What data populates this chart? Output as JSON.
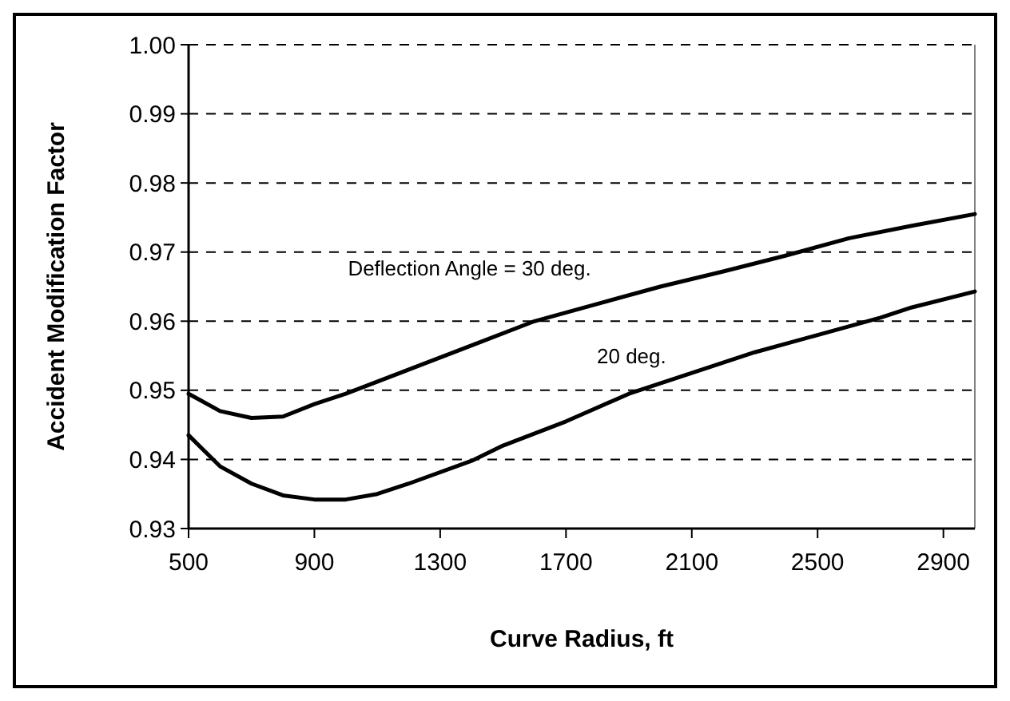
{
  "chart_data": {
    "type": "line",
    "xlabel": "Curve Radius, ft",
    "ylabel": "Accident Modification Factor",
    "xlim": [
      500,
      3000
    ],
    "xticks": [
      500,
      900,
      1300,
      1700,
      2100,
      2500,
      2900
    ],
    "ylim": [
      0.93,
      1.0
    ],
    "yticks": [
      {
        "value": 0.93,
        "label": "0.93"
      },
      {
        "value": 0.94,
        "label": "0.94"
      },
      {
        "value": 0.95,
        "label": "0.95"
      },
      {
        "value": 0.96,
        "label": "0.96"
      },
      {
        "value": 0.97,
        "label": "0.97"
      },
      {
        "value": 0.98,
        "label": "0.98"
      },
      {
        "value": 0.99,
        "label": "0.99"
      },
      {
        "value": 1.0,
        "label": "1.00"
      }
    ],
    "grid": "y",
    "legend": false,
    "marker": "none",
    "line_style": "solid",
    "series": [
      {
        "name": "Deflection Angle = 30 deg.",
        "color": "#000000",
        "x": [
          500,
          600,
          700,
          800,
          900,
          1000,
          1200,
          1400,
          1600,
          1800,
          2000,
          2200,
          2400,
          2600,
          2800,
          3000
        ],
        "values": [
          0.9495,
          0.947,
          0.946,
          0.9462,
          0.948,
          0.9495,
          0.953,
          0.9565,
          0.96,
          0.9625,
          0.965,
          0.9672,
          0.9695,
          0.972,
          0.9738,
          0.9755
        ]
      },
      {
        "name": "20 deg.",
        "color": "#000000",
        "x": [
          500,
          600,
          700,
          800,
          900,
          1000,
          1100,
          1200,
          1400,
          1500,
          1700,
          1900,
          2100,
          2300,
          2500,
          2700,
          2800,
          3000
        ],
        "values": [
          0.9435,
          0.939,
          0.9365,
          0.9348,
          0.9342,
          0.9342,
          0.935,
          0.9365,
          0.9398,
          0.942,
          0.9455,
          0.9495,
          0.9525,
          0.9555,
          0.958,
          0.9605,
          0.962,
          0.9643
        ]
      }
    ]
  }
}
